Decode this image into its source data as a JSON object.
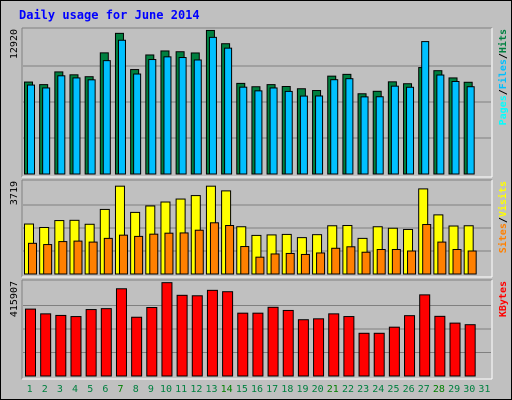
{
  "title": "Daily usage for June 2014",
  "colors": {
    "background": "#c0c0c0",
    "title": "#0000ff",
    "hits": "#008040",
    "files": "#00c0ff",
    "pages": "#00ffff",
    "visits": "#ffff00",
    "sites": "#ff8000",
    "kbytes": "#ff0000",
    "weekday_label": "#008040",
    "weekend_label": "#008000"
  },
  "chart_data": [
    {
      "type": "bar",
      "panel": "hits-files-pages",
      "categories": [
        "1",
        "2",
        "3",
        "4",
        "5",
        "6",
        "7",
        "8",
        "9",
        "10",
        "11",
        "12",
        "13",
        "14",
        "15",
        "16",
        "17",
        "18",
        "19",
        "20",
        "21",
        "22",
        "23",
        "24",
        "25",
        "26",
        "27",
        "28",
        "29",
        "30",
        "31"
      ],
      "ymax_label": "12920",
      "ylim": [
        0,
        12920
      ],
      "legend": [
        "Pages",
        "/",
        "Files",
        "/",
        "Hits"
      ],
      "series": [
        {
          "name": "Hits",
          "color": "#008040",
          "values": [
            8250,
            8020,
            9160,
            8900,
            8730,
            10870,
            12620,
            9370,
            10680,
            11040,
            10970,
            10860,
            12880,
            11690,
            8130,
            7830,
            8020,
            7850,
            7650,
            7490,
            8780,
            8940,
            7200,
            7420,
            8270,
            8100,
            9550,
            9270,
            8620,
            8230,
            0
          ]
        },
        {
          "name": "Files",
          "color": "#00c0ff",
          "values": [
            7980,
            7720,
            8810,
            8620,
            8450,
            10170,
            12000,
            8970,
            10270,
            10510,
            10450,
            10230,
            12260,
            11290,
            7790,
            7460,
            7720,
            7410,
            6990,
            7000,
            8460,
            8550,
            6920,
            6930,
            7880,
            7780,
            11880,
            8880,
            8300,
            7830,
            0
          ]
        },
        {
          "name": "Pages",
          "color": "#00ffff",
          "values": [
            0,
            0,
            0,
            0,
            0,
            0,
            0,
            0,
            0,
            0,
            0,
            0,
            0,
            0,
            0,
            0,
            0,
            0,
            0,
            0,
            0,
            0,
            0,
            0,
            0,
            0,
            0,
            0,
            0,
            0,
            0
          ]
        }
      ]
    },
    {
      "type": "bar",
      "panel": "visits-sites",
      "categories": [
        "1",
        "2",
        "3",
        "4",
        "5",
        "6",
        "7",
        "8",
        "9",
        "10",
        "11",
        "12",
        "13",
        "14",
        "15",
        "16",
        "17",
        "18",
        "19",
        "20",
        "21",
        "22",
        "23",
        "24",
        "25",
        "26",
        "27",
        "28",
        "29",
        "30",
        "31"
      ],
      "ymax_label": "3719",
      "ylim": [
        0,
        3719
      ],
      "legend": [
        "Sites",
        "/",
        "Visits"
      ],
      "series": [
        {
          "name": "Visits",
          "color": "#ffff00",
          "values": [
            2020,
            1880,
            2160,
            2170,
            2010,
            2610,
            3550,
            2490,
            2750,
            2910,
            3030,
            3170,
            3550,
            3360,
            1910,
            1560,
            1580,
            1600,
            1470,
            1590,
            1950,
            1960,
            1440,
            1910,
            1850,
            1800,
            3440,
            2390,
            1940,
            1950,
            0
          ]
        },
        {
          "name": "Sites",
          "color": "#ff8000",
          "values": [
            1240,
            1190,
            1310,
            1330,
            1290,
            1440,
            1570,
            1520,
            1610,
            1650,
            1660,
            1770,
            2070,
            1960,
            1110,
            680,
            810,
            830,
            790,
            850,
            1040,
            1100,
            880,
            990,
            990,
            930,
            2000,
            1290,
            990,
            930,
            0
          ]
        }
      ]
    },
    {
      "type": "bar",
      "panel": "kbytes",
      "categories": [
        "1",
        "2",
        "3",
        "4",
        "5",
        "6",
        "7",
        "8",
        "9",
        "10",
        "11",
        "12",
        "13",
        "14",
        "15",
        "16",
        "17",
        "18",
        "19",
        "20",
        "21",
        "22",
        "23",
        "24",
        "25",
        "26",
        "27",
        "28",
        "29",
        "30",
        "31"
      ],
      "ymax_label": "415907",
      "ylim": [
        0,
        415907
      ],
      "legend": [
        "KBytes"
      ],
      "series": [
        {
          "name": "KBytes",
          "color": "#ff0000",
          "values": [
            296000,
            275000,
            268000,
            263000,
            294000,
            298000,
            386000,
            260000,
            303000,
            413000,
            357000,
            355000,
            379000,
            373000,
            278000,
            278000,
            304000,
            290000,
            249000,
            253000,
            275000,
            263000,
            189000,
            189000,
            216000,
            267000,
            359000,
            264000,
            234000,
            227000,
            0
          ]
        }
      ]
    }
  ],
  "weekend_days": [
    7,
    14,
    21,
    28
  ]
}
